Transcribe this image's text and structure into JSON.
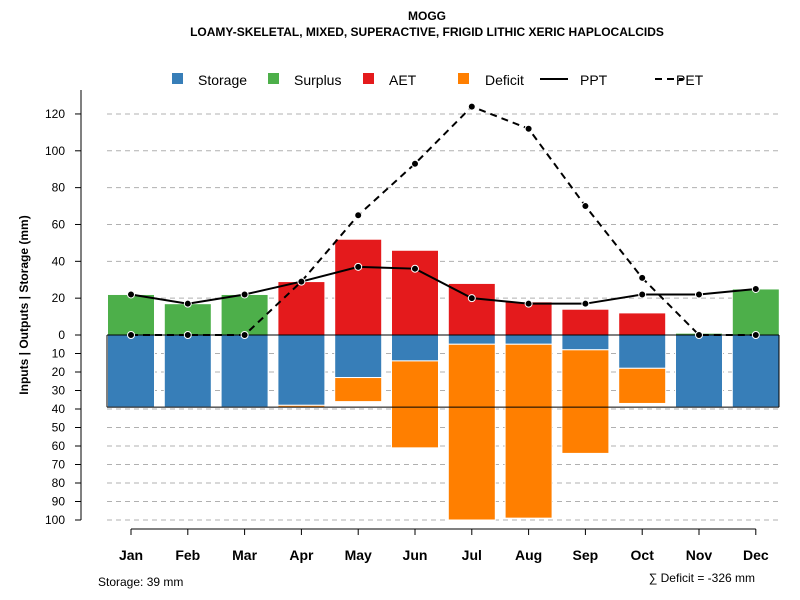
{
  "chart_data": {
    "type": "bar",
    "title": "MOGG",
    "subtitle": "LOAMY-SKELETAL, MIXED, SUPERACTIVE, FRIGID LITHIC XERIC HAPLOCALCIDS",
    "ylabel": "Inputs | Outputs | Storage    (mm)",
    "xlabel": "",
    "categories": [
      "Jan",
      "Feb",
      "Mar",
      "Apr",
      "May",
      "Jun",
      "Jul",
      "Aug",
      "Sep",
      "Oct",
      "Nov",
      "Dec"
    ],
    "upper_ylim": [
      0,
      130
    ],
    "lower_ylim": [
      0,
      100
    ],
    "upper_ticks": [
      "0",
      "20",
      "40",
      "60",
      "80",
      "100",
      "120"
    ],
    "lower_ticks": [
      "10",
      "20",
      "30",
      "40",
      "50",
      "60",
      "70",
      "80",
      "90",
      "100"
    ],
    "grid": true,
    "legend_position": "top",
    "legend": [
      {
        "label": "Storage",
        "type": "square",
        "color": "#377EB8"
      },
      {
        "label": "Surplus",
        "type": "square",
        "color": "#4DAF4A"
      },
      {
        "label": "AET",
        "type": "square",
        "color": "#E41A1C"
      },
      {
        "label": "Deficit",
        "type": "square",
        "color": "#FF7F00"
      },
      {
        "label": "PPT",
        "type": "solid-line",
        "color": "#000000"
      },
      {
        "label": "PET",
        "type": "dashed-line",
        "color": "#000000"
      }
    ],
    "series": [
      {
        "name": "Surplus",
        "color": "#4DAF4A",
        "values": [
          22,
          17,
          22,
          0,
          0,
          0,
          0,
          0,
          0,
          0,
          1,
          25
        ]
      },
      {
        "name": "AET",
        "color": "#E41A1C",
        "values": [
          0,
          0,
          0,
          29,
          52,
          46,
          28,
          18,
          14,
          12,
          0,
          0
        ]
      },
      {
        "name": "Storage",
        "color": "#377EB8",
        "values": [
          39,
          39,
          39,
          38,
          23,
          14,
          5,
          5,
          8,
          18,
          39,
          39
        ]
      },
      {
        "name": "Deficit",
        "color": "#FF7F00",
        "values": [
          0,
          0,
          0,
          1,
          13,
          47,
          95,
          94,
          56,
          19,
          0,
          0
        ]
      },
      {
        "name": "PPT",
        "color": "#000000",
        "values": [
          22,
          17,
          22,
          29,
          37,
          36,
          20,
          17,
          17,
          22,
          22,
          25
        ]
      },
      {
        "name": "PET",
        "color": "#000000",
        "values": [
          0,
          0,
          0,
          29,
          65,
          93,
          124,
          112,
          70,
          31,
          0,
          0
        ]
      }
    ],
    "annotations": {
      "storage": "Storage: 39 mm",
      "deficit": "∑ Deficit = -326 mm"
    }
  }
}
